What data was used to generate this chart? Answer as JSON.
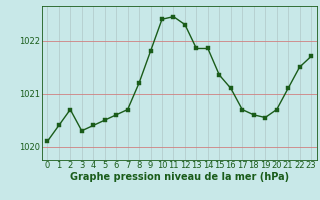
{
  "x": [
    0,
    1,
    2,
    3,
    4,
    5,
    6,
    7,
    8,
    9,
    10,
    11,
    12,
    13,
    14,
    15,
    16,
    17,
    18,
    19,
    20,
    21,
    22,
    23
  ],
  "y": [
    1020.1,
    1020.4,
    1020.7,
    1020.3,
    1020.4,
    1020.5,
    1020.6,
    1020.7,
    1021.2,
    1021.8,
    1022.4,
    1022.45,
    1022.3,
    1021.85,
    1021.85,
    1021.35,
    1021.1,
    1020.7,
    1020.6,
    1020.55,
    1020.7,
    1021.1,
    1021.5,
    1021.7
  ],
  "line_color": "#1a5c1a",
  "marker_color": "#1a5c1a",
  "background_color": "#c8e8e8",
  "vgrid_color": "#b0c8c8",
  "hgrid_color": "#d08080",
  "spine_color": "#1a5c1a",
  "title": "Graphe pression niveau de la mer (hPa)",
  "ylim": [
    1019.75,
    1022.65
  ],
  "yticks": [
    1020,
    1021,
    1022
  ],
  "xticks": [
    0,
    1,
    2,
    3,
    4,
    5,
    6,
    7,
    8,
    9,
    10,
    11,
    12,
    13,
    14,
    15,
    16,
    17,
    18,
    19,
    20,
    21,
    22,
    23
  ],
  "title_fontsize": 7,
  "tick_fontsize": 6,
  "linewidth": 1.0,
  "markersize": 2.5
}
